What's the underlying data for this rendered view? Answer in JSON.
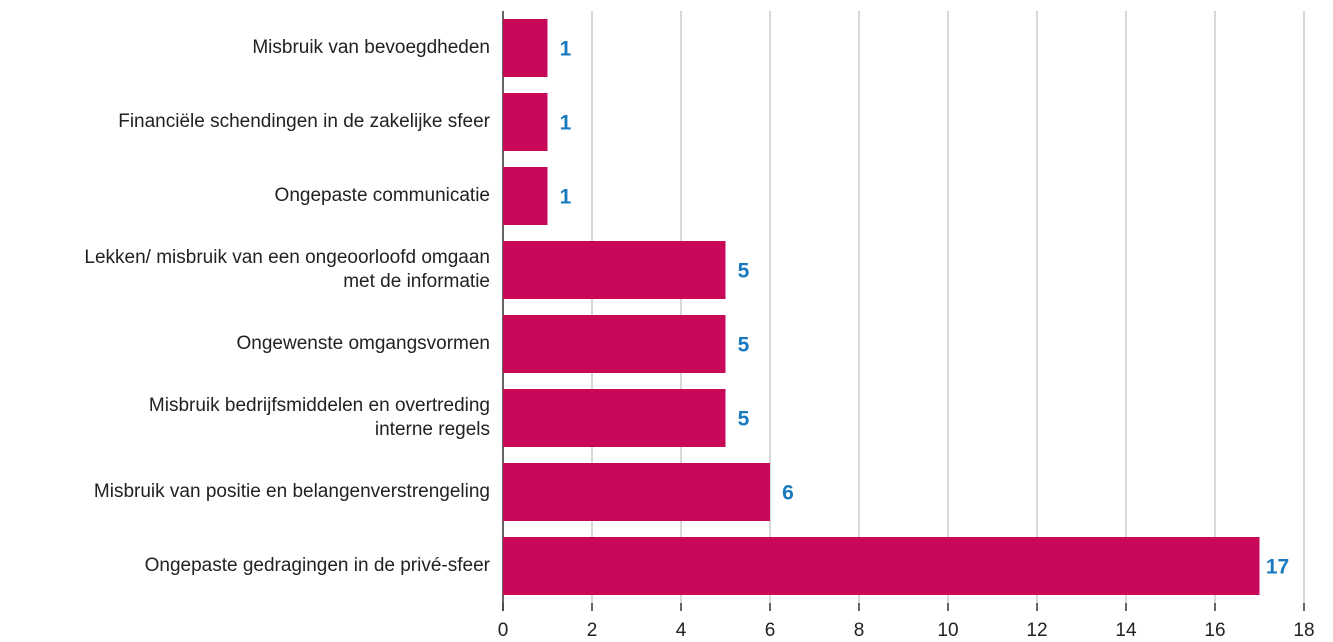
{
  "chart_data": {
    "type": "barh",
    "categories": [
      "Misbruik van bevoegdheden",
      "Financiële schendingen in de zakelijke sfeer",
      "Ongepaste communicatie",
      "Lekken/ misbruik van een ongeoorloofd omgaan\nmet de informatie",
      "Ongewenste omgangsvormen",
      "Misbruik bedrijfsmiddelen en overtreding\ninterne regels",
      "Misbruik van positie en belangenverstrengeling",
      "Ongepaste gedragingen in de privé-sfeer"
    ],
    "values": [
      1,
      1,
      1,
      5,
      5,
      5,
      6,
      17
    ],
    "color": "#c8095a",
    "label_color": "#1a7abf",
    "xlim": [
      0,
      18
    ],
    "xticks": [
      0,
      2,
      4,
      6,
      8,
      10,
      12,
      14,
      16,
      18
    ],
    "grid": true
  }
}
